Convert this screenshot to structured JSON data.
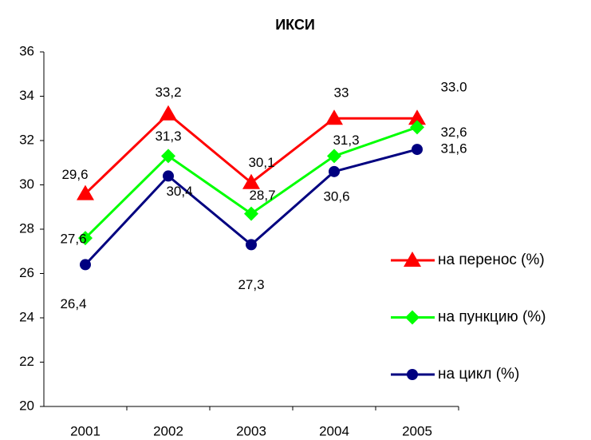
{
  "chart_data": {
    "type": "line",
    "title": "ИКСИ",
    "categories": [
      "2001",
      "2002",
      "2003",
      "2004",
      "2005"
    ],
    "series": [
      {
        "name": "на перенос (%)",
        "color": "#ff0000",
        "marker": "triangle",
        "values": [
          29.6,
          33.2,
          30.1,
          33,
          33.0
        ],
        "value_labels": [
          "29,6",
          "33,2",
          "30,1",
          "33",
          "33.0"
        ]
      },
      {
        "name": "на пункцию (%)",
        "color": "#00ff00",
        "marker": "diamond",
        "values": [
          27.6,
          31.3,
          28.7,
          31.3,
          32.6
        ],
        "value_labels": [
          "27,6",
          "31,3",
          "28,7",
          "31,3",
          "32,6"
        ]
      },
      {
        "name": "на цикл (%)",
        "color": "#000080",
        "marker": "circle",
        "values": [
          26.4,
          30.4,
          27.3,
          30.6,
          31.6
        ],
        "value_labels": [
          "26,4",
          "30,4",
          "27,3",
          "30,6",
          "31,6"
        ]
      }
    ],
    "ylim": [
      20,
      36
    ],
    "yticks": [
      20,
      22,
      24,
      26,
      28,
      30,
      32,
      34,
      36
    ],
    "grid": false,
    "legend": "right"
  }
}
